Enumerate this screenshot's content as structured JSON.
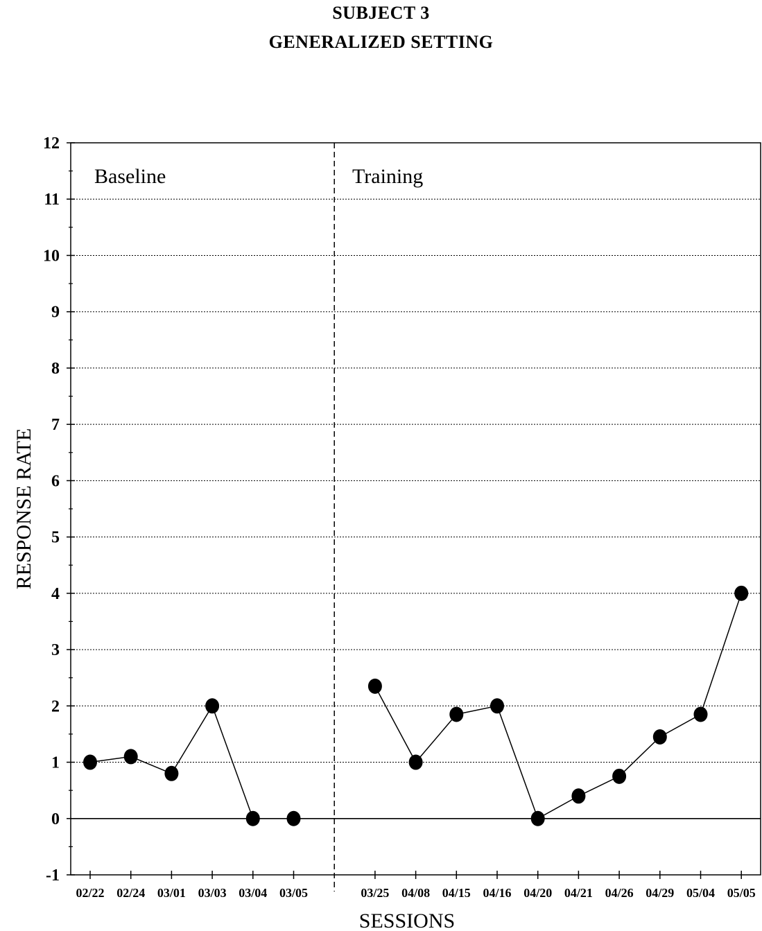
{
  "header": {
    "title": "SUBJECT 3",
    "subtitle": "GENERALIZED SETTING"
  },
  "chart_data": {
    "type": "line",
    "title": "SUBJECT 3",
    "subtitle": "GENERALIZED SETTING",
    "xlabel": "SESSIONS",
    "ylabel": "RESPONSE RATE",
    "ylim": [
      -1,
      12
    ],
    "yticks": [
      -1,
      0,
      1,
      2,
      3,
      4,
      5,
      6,
      7,
      8,
      9,
      10,
      11,
      12
    ],
    "grid": true,
    "phases": [
      {
        "label": "Baseline",
        "categories": [
          "02/22",
          "02/24",
          "03/01",
          "03/03",
          "03/04",
          "03/05"
        ],
        "values": [
          1.0,
          1.1,
          0.8,
          2.0,
          0.0,
          0.0
        ]
      },
      {
        "label": "Training",
        "categories": [
          "03/25",
          "04/08",
          "04/15",
          "04/16",
          "04/20",
          "04/21",
          "04/26",
          "04/29",
          "05/04",
          "05/05"
        ],
        "values": [
          2.35,
          1.0,
          1.85,
          2.0,
          0.0,
          0.4,
          0.75,
          1.45,
          1.85,
          4.0
        ]
      }
    ]
  }
}
